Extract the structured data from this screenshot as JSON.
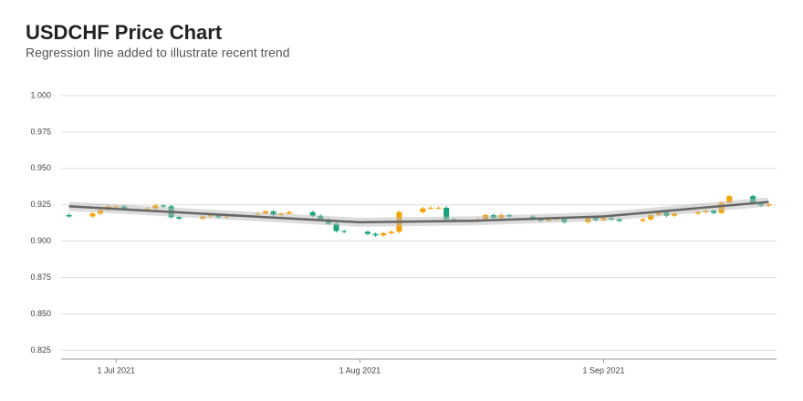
{
  "chart_data": {
    "type": "candlestick",
    "title": "USDCHF Price Chart",
    "subtitle": "Regression line added to illustrate recent trend",
    "x": [
      "2021-06-25",
      "2021-06-28",
      "2021-06-29",
      "2021-06-30",
      "2021-07-01",
      "2021-07-02",
      "2021-07-05",
      "2021-07-06",
      "2021-07-07",
      "2021-07-08",
      "2021-07-09",
      "2021-07-12",
      "2021-07-13",
      "2021-07-14",
      "2021-07-15",
      "2021-07-16",
      "2021-07-19",
      "2021-07-20",
      "2021-07-21",
      "2021-07-22",
      "2021-07-23",
      "2021-07-26",
      "2021-07-27",
      "2021-07-28",
      "2021-07-29",
      "2021-07-30",
      "2021-08-02",
      "2021-08-03",
      "2021-08-04",
      "2021-08-05",
      "2021-08-06",
      "2021-08-09",
      "2021-08-10",
      "2021-08-11",
      "2021-08-12",
      "2021-08-13",
      "2021-08-16",
      "2021-08-17",
      "2021-08-18",
      "2021-08-19",
      "2021-08-20",
      "2021-08-23",
      "2021-08-24",
      "2021-08-25",
      "2021-08-26",
      "2021-08-27",
      "2021-08-30",
      "2021-08-31",
      "2021-09-01",
      "2021-09-02",
      "2021-09-03",
      "2021-09-06",
      "2021-09-07",
      "2021-09-08",
      "2021-09-09",
      "2021-09-10",
      "2021-09-13",
      "2021-09-14",
      "2021-09-15",
      "2021-09-16",
      "2021-09-17",
      "2021-09-20",
      "2021-09-21",
      "2021-09-22"
    ],
    "open": [
      0.918,
      0.917,
      0.919,
      0.9215,
      0.924,
      0.924,
      0.922,
      0.9225,
      0.9245,
      0.924,
      0.9165,
      0.9155,
      0.917,
      0.918,
      0.9165,
      0.917,
      0.9185,
      0.919,
      0.9205,
      0.918,
      0.919,
      0.92,
      0.9175,
      0.915,
      0.912,
      0.907,
      0.9065,
      0.905,
      0.904,
      0.9055,
      0.9065,
      0.92,
      0.9225,
      0.923,
      0.923,
      0.915,
      0.914,
      0.915,
      0.918,
      0.916,
      0.918,
      0.917,
      0.915,
      0.914,
      0.915,
      0.916,
      0.913,
      0.9165,
      0.9145,
      0.916,
      0.915,
      0.914,
      0.915,
      0.918,
      0.92,
      0.9175,
      0.919,
      0.92,
      0.921,
      0.9195,
      0.9265,
      0.931,
      0.926,
      0.9245
    ],
    "high": [
      0.919,
      0.92,
      0.9225,
      0.925,
      0.925,
      0.925,
      0.9235,
      0.9255,
      0.9255,
      0.925,
      0.9175,
      0.918,
      0.919,
      0.919,
      0.918,
      0.9195,
      0.92,
      0.9215,
      0.9215,
      0.92,
      0.921,
      0.921,
      0.9185,
      0.916,
      0.913,
      0.908,
      0.9075,
      0.906,
      0.9065,
      0.9075,
      0.921,
      0.9235,
      0.924,
      0.924,
      0.924,
      0.916,
      0.916,
      0.919,
      0.919,
      0.919,
      0.919,
      0.918,
      0.916,
      0.916,
      0.917,
      0.917,
      0.9175,
      0.9175,
      0.917,
      0.917,
      0.916,
      0.916,
      0.919,
      0.921,
      0.921,
      0.92,
      0.921,
      0.922,
      0.922,
      0.9275,
      0.932,
      0.932,
      0.927,
      0.9265
    ],
    "low": [
      0.916,
      0.916,
      0.918,
      0.9205,
      0.923,
      0.921,
      0.921,
      0.9215,
      0.923,
      0.9155,
      0.9145,
      0.9145,
      0.916,
      0.9155,
      0.9155,
      0.916,
      0.9175,
      0.918,
      0.917,
      0.917,
      0.918,
      0.9165,
      0.914,
      0.911,
      0.906,
      0.9055,
      0.904,
      0.903,
      0.903,
      0.9045,
      0.9055,
      0.919,
      0.9215,
      0.922,
      0.914,
      0.913,
      0.913,
      0.914,
      0.915,
      0.915,
      0.916,
      0.914,
      0.913,
      0.913,
      0.914,
      0.912,
      0.912,
      0.9135,
      0.9135,
      0.914,
      0.913,
      0.913,
      0.914,
      0.917,
      0.9165,
      0.9165,
      0.918,
      0.919,
      0.9185,
      0.9185,
      0.9255,
      0.925,
      0.9235,
      0.9235
    ],
    "close": [
      0.917,
      0.919,
      0.9215,
      0.924,
      0.924,
      0.922,
      0.9225,
      0.9245,
      0.924,
      0.9165,
      0.9155,
      0.917,
      0.918,
      0.9165,
      0.917,
      0.9185,
      0.919,
      0.9205,
      0.918,
      0.919,
      0.92,
      0.9175,
      0.915,
      0.912,
      0.907,
      0.9065,
      0.905,
      0.904,
      0.9055,
      0.9065,
      0.92,
      0.9225,
      0.923,
      0.923,
      0.915,
      0.914,
      0.915,
      0.918,
      0.916,
      0.918,
      0.917,
      0.915,
      0.914,
      0.915,
      0.916,
      0.913,
      0.9165,
      0.9145,
      0.916,
      0.915,
      0.914,
      0.915,
      0.918,
      0.92,
      0.9175,
      0.919,
      0.92,
      0.921,
      0.9195,
      0.9265,
      0.931,
      0.926,
      0.9245,
      0.9255
    ],
    "up_color": "#f5a100",
    "down_color": "#1aa37a",
    "trend": {
      "x": [
        "2021-06-25",
        "2021-07-15",
        "2021-08-01",
        "2021-08-15",
        "2021-09-01",
        "2021-09-22"
      ],
      "values": [
        0.924,
        0.918,
        0.913,
        0.914,
        0.917,
        0.927
      ],
      "color": "#666666"
    },
    "xlim": [
      "2021-06-24",
      "2021-09-23"
    ],
    "xticks": [
      {
        "value": "2021-07-01",
        "label": "1 Jul 2021"
      },
      {
        "value": "2021-08-01",
        "label": "1 Aug 2021"
      },
      {
        "value": "2021-09-01",
        "label": "1 Sep 2021"
      }
    ],
    "ylim": [
      0.819,
      1.0
    ],
    "yticks": [
      {
        "value": 0.825,
        "label": "0.825"
      },
      {
        "value": 0.85,
        "label": "0.850"
      },
      {
        "value": 0.875,
        "label": "0.875"
      },
      {
        "value": 0.9,
        "label": "0.900"
      },
      {
        "value": 0.925,
        "label": "0.925"
      },
      {
        "value": 0.95,
        "label": "0.950"
      },
      {
        "value": 0.975,
        "label": "0.975"
      },
      {
        "value": 1,
        "label": "1.000"
      }
    ],
    "grid": true
  }
}
